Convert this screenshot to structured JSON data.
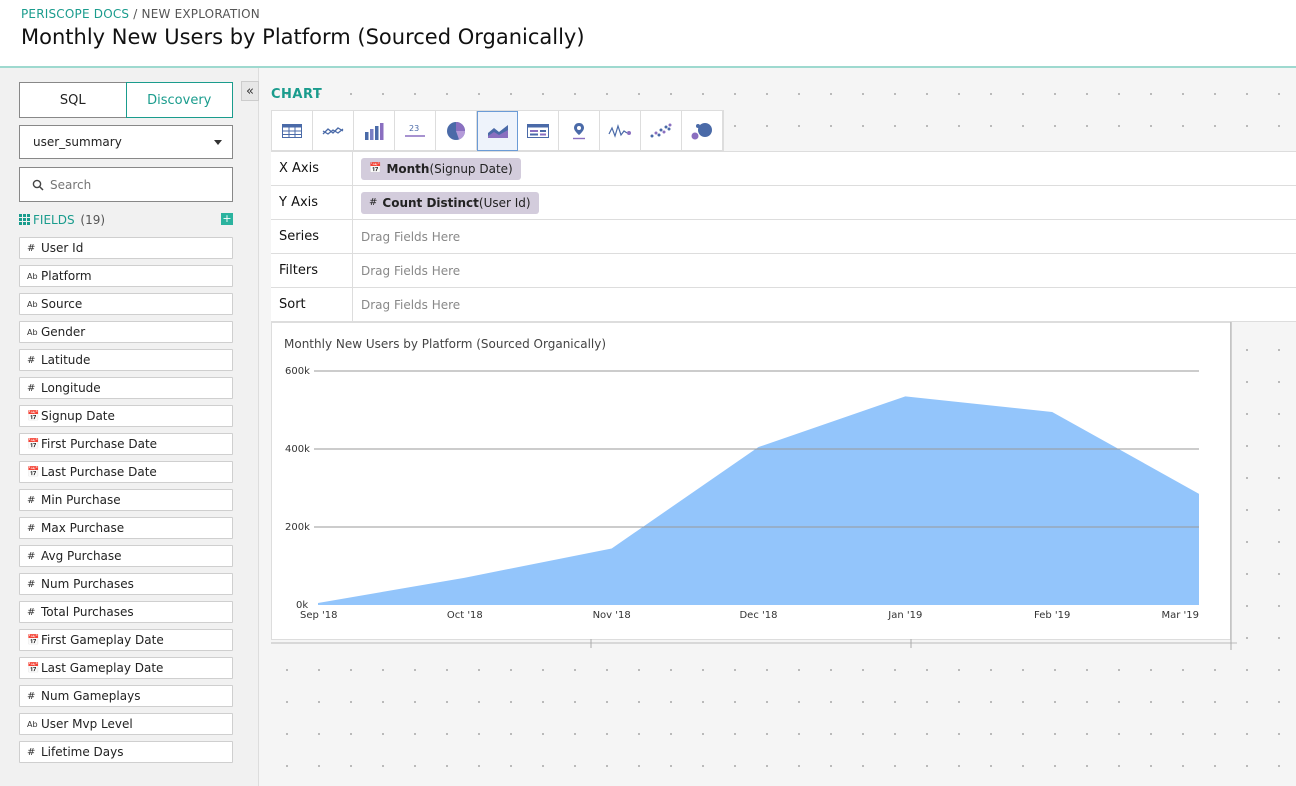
{
  "header": {
    "breadcrumb_brand": "PERISCOPE DOCS",
    "breadcrumb_sep": " / ",
    "breadcrumb_page": "NEW EXPLORATION",
    "title": "Monthly New Users by Platform (Sourced Organically)"
  },
  "sidebar": {
    "mode_sql": "SQL",
    "mode_discovery": "Discovery",
    "collapse_glyph": "«",
    "table_value": "user_summary",
    "search_placeholder": "Search",
    "fields_label": "FIELDS",
    "fields_count": "(19)",
    "add_glyph": "+",
    "fields": [
      {
        "type": "num",
        "label": "User Id"
      },
      {
        "type": "text",
        "label": "Platform"
      },
      {
        "type": "text",
        "label": "Source"
      },
      {
        "type": "text",
        "label": "Gender"
      },
      {
        "type": "num",
        "label": "Latitude"
      },
      {
        "type": "num",
        "label": "Longitude"
      },
      {
        "type": "date",
        "label": "Signup Date"
      },
      {
        "type": "date",
        "label": "First Purchase Date"
      },
      {
        "type": "date",
        "label": "Last Purchase Date"
      },
      {
        "type": "num",
        "label": "Min Purchase"
      },
      {
        "type": "num",
        "label": "Max Purchase"
      },
      {
        "type": "num",
        "label": "Avg Purchase"
      },
      {
        "type": "num",
        "label": "Num Purchases"
      },
      {
        "type": "num",
        "label": "Total Purchases"
      },
      {
        "type": "date",
        "label": "First Gameplay Date"
      },
      {
        "type": "date",
        "label": "Last Gameplay Date"
      },
      {
        "type": "num",
        "label": "Num Gameplays"
      },
      {
        "type": "text",
        "label": "User Mvp Level"
      },
      {
        "type": "num",
        "label": "Lifetime Days"
      }
    ]
  },
  "main": {
    "chart_section_label": "CHART",
    "chart_types": [
      "table",
      "line",
      "bar",
      "number",
      "pie",
      "area",
      "pivot",
      "map",
      "sparkline",
      "scatter",
      "bubble"
    ],
    "active_chart_type": "area",
    "slots": {
      "x_axis_label": "X Axis",
      "x_pill_bold": "Month",
      "x_pill_rest": "(Signup Date)",
      "y_axis_label": "Y Axis",
      "y_pill_bold": "Count Distinct",
      "y_pill_rest": "(User Id)",
      "series_label": "Series",
      "filters_label": "Filters",
      "sort_label": "Sort",
      "drop_hint": "Drag Fields Here"
    }
  },
  "chart_data": {
    "type": "area",
    "title": "Monthly New Users by Platform (Sourced Organically)",
    "categories": [
      "Sep '18",
      "Oct '18",
      "Nov '18",
      "Dec '18",
      "Jan '19",
      "Feb '19",
      "Mar '19"
    ],
    "values": [
      5000,
      70000,
      145000,
      405000,
      535000,
      495000,
      285000
    ],
    "y_ticks": [
      "0k",
      "200k",
      "400k",
      "600k"
    ],
    "ylim": [
      0,
      600000
    ],
    "grid": true,
    "color": "#93c5fb"
  }
}
